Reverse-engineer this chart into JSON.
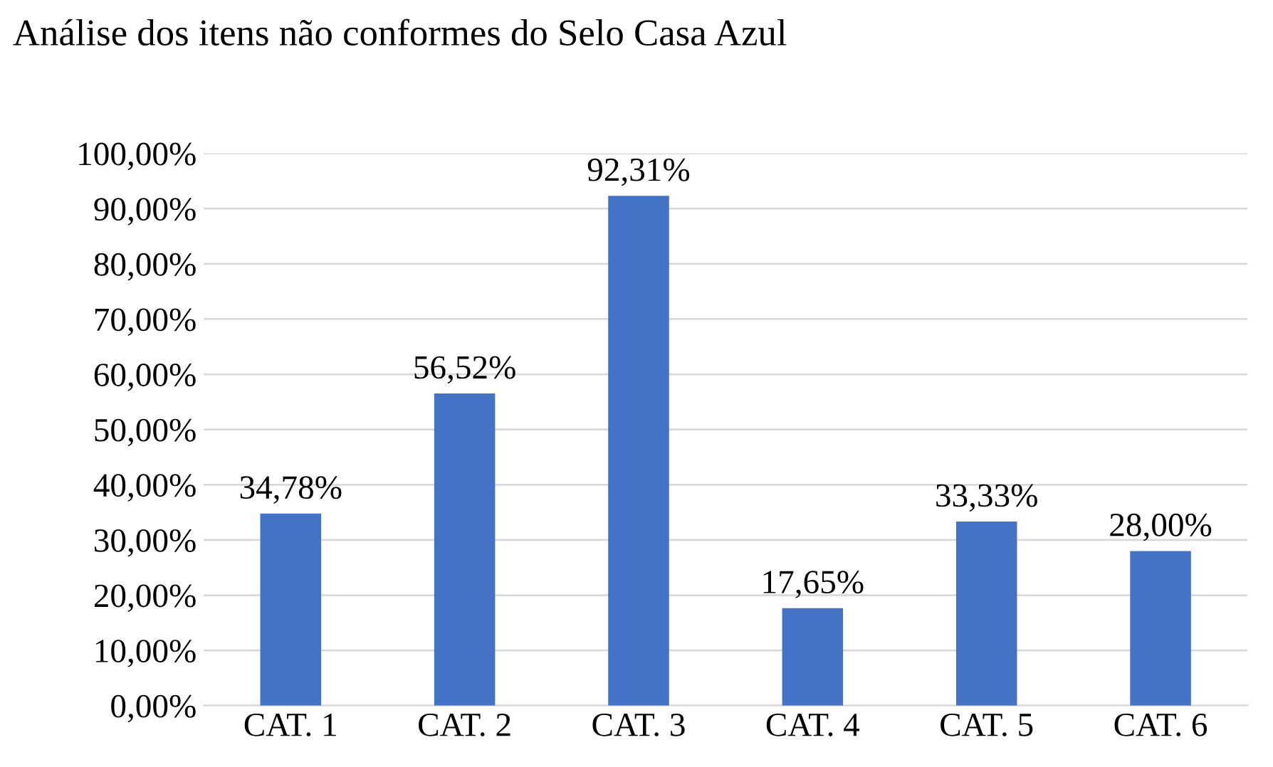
{
  "chart_data": {
    "type": "bar",
    "title": "Análise dos itens não conformes do Selo Casa Azul",
    "categories": [
      "CAT. 1",
      "CAT. 2",
      "CAT. 3",
      "CAT. 4",
      "CAT. 5",
      "CAT. 6"
    ],
    "values": [
      34.78,
      56.52,
      92.31,
      17.65,
      33.33,
      28.0
    ],
    "value_labels": [
      "34,78%",
      "56,52%",
      "92,31%",
      "17,65%",
      "33,33%",
      "28,00%"
    ],
    "color": "#4472c4",
    "ylim": [
      0,
      100
    ],
    "yticks": [
      {
        "value": 0,
        "label": "0,00%"
      },
      {
        "value": 10,
        "label": "10,00%"
      },
      {
        "value": 20,
        "label": "20,00%"
      },
      {
        "value": 30,
        "label": "30,00%"
      },
      {
        "value": 40,
        "label": "40,00%"
      },
      {
        "value": 50,
        "label": "50,00%"
      },
      {
        "value": 60,
        "label": "60,00%"
      },
      {
        "value": 70,
        "label": "70,00%"
      },
      {
        "value": 80,
        "label": "80,00%"
      },
      {
        "value": 90,
        "label": "90,00%"
      },
      {
        "value": 100,
        "label": "100,00%"
      }
    ],
    "grid": "y"
  }
}
